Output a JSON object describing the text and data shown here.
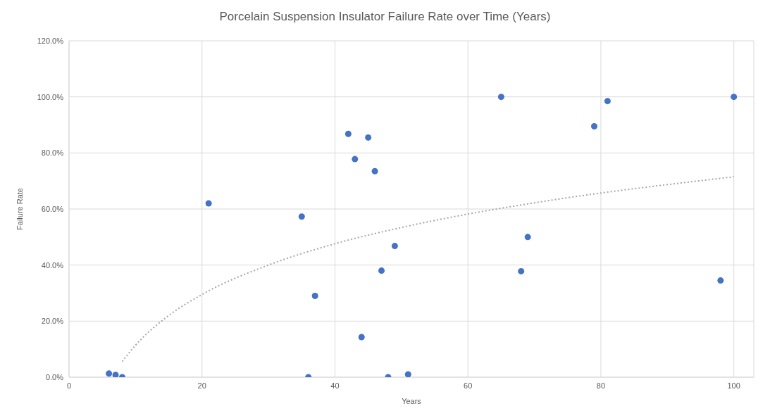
{
  "chart_data": {
    "type": "scatter",
    "title": "Porcelain Suspension Insulator Failure Rate over Time (Years)",
    "xlabel": "Years",
    "ylabel": "Failure Rate",
    "xlim": [
      0,
      103
    ],
    "xticks": [
      0,
      20,
      40,
      60,
      80,
      100
    ],
    "ylim": [
      0,
      120
    ],
    "yticks": [
      {
        "value": 0,
        "label": "0.0%"
      },
      {
        "value": 20,
        "label": "20.0%"
      },
      {
        "value": 40,
        "label": "40.0%"
      },
      {
        "value": 60,
        "label": "60.0%"
      },
      {
        "value": 80,
        "label": "80.0%"
      },
      {
        "value": 100,
        "label": "100.0%"
      },
      {
        "value": 120,
        "label": "120.0%"
      }
    ],
    "grid": true,
    "series": [
      {
        "color": "#4472c4",
        "marker": "circle",
        "x": [
          6,
          7,
          8,
          21,
          35,
          36,
          37,
          42,
          43,
          44,
          45,
          46,
          47,
          48,
          49,
          51,
          65,
          68,
          69,
          79,
          81,
          98,
          100
        ],
        "values": [
          1.3,
          0.8,
          0,
          62,
          57.3,
          0,
          29,
          86.8,
          77.8,
          14.3,
          85.5,
          73.5,
          38,
          0,
          46.8,
          1,
          100,
          37.8,
          50,
          89.5,
          98.5,
          34.5,
          100
        ]
      },
      {
        "type": "line",
        "color": "#a6a6a6",
        "marker": "none",
        "line_style": "dotted",
        "x": [
          8,
          10,
          15,
          20,
          30,
          40,
          50,
          60,
          70,
          80,
          90,
          100
        ],
        "values": [
          5.6,
          11.4,
          22,
          29.5,
          40,
          47.6,
          53.4,
          58.2,
          62.2,
          65.7,
          68.7,
          71.5
        ]
      }
    ]
  }
}
